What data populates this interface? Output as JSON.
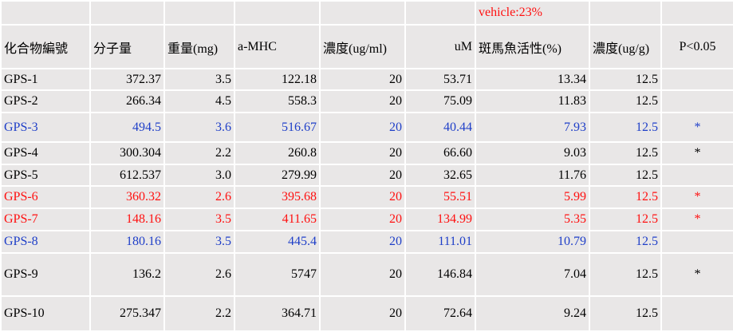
{
  "header_note": "vehicle:23%",
  "columns": [
    "化合物編號",
    "分子量",
    "重量(mg)",
    "a-MHC",
    "濃度(ug/ml)",
    "uM",
    "斑馬魚活性(%)",
    "濃度(ug/g)",
    "P<0.05"
  ],
  "rows": [
    {
      "cells": [
        "GPS-1",
        "372.37",
        "3.5",
        "122.18",
        "20",
        "53.71",
        "13.34",
        "12.5"
      ]
    },
    {
      "cells": [
        "GPS-2",
        "266.34",
        "4.5",
        "558.3",
        "20",
        "75.09",
        "11.83",
        "12.5"
      ]
    },
    {
      "cells": [
        "GPS-3",
        "494.5",
        "3.6",
        "516.67",
        "20",
        "40.44",
        "7.93",
        "12.5"
      ],
      "mark": "*",
      "color": "#1f3fc8"
    },
    {
      "cells": [
        "GPS-4",
        "300.304",
        "2.2",
        "260.8",
        "20",
        "66.60",
        "9.03",
        "12.5"
      ],
      "mark": "*"
    },
    {
      "cells": [
        "GPS-5",
        "612.537",
        "3.0",
        "279.99",
        "20",
        "32.65",
        "11.76",
        "12.5"
      ]
    },
    {
      "cells": [
        "GPS-6",
        "360.32",
        "2.6",
        "395.68",
        "20",
        "55.51",
        "5.99",
        "12.5"
      ],
      "mark": "*",
      "color": "#ff1010"
    },
    {
      "cells": [
        "GPS-7",
        "148.16",
        "3.5",
        "411.65",
        "20",
        "134.99",
        "5.35",
        "12.5"
      ],
      "mark": "*",
      "color": "#ff1010"
    },
    {
      "cells": [
        "GPS-8",
        "180.16",
        "3.5",
        "445.4",
        "20",
        "111.01",
        "10.79",
        "12.5"
      ],
      "color": "#1f3fc8"
    },
    {
      "cells": [
        "GPS-9",
        "136.2",
        "2.6",
        "5747",
        "20",
        "146.84",
        "7.04",
        "12.5"
      ],
      "mark": "*"
    },
    {
      "cells": [
        "GPS-10",
        "275.347",
        "2.2",
        "364.71",
        "20",
        "72.64",
        "9.24",
        "12.5"
      ]
    }
  ]
}
